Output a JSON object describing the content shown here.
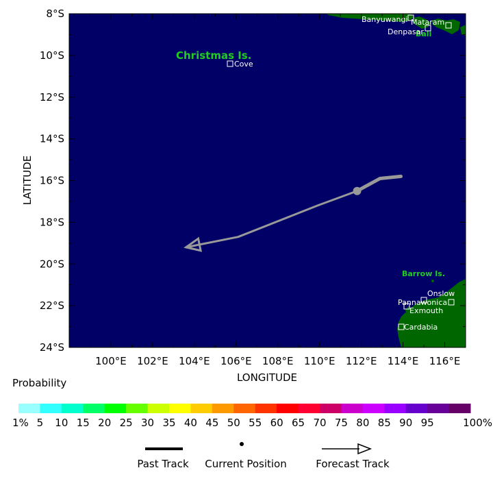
{
  "map": {
    "xlabel": "LONGITUDE",
    "ylabel": "LATITUDE",
    "lat_range": [
      -24,
      -8
    ],
    "lon_range": [
      98,
      117
    ],
    "lat_ticks": [
      "8°S",
      "10°S",
      "12°S",
      "14°S",
      "16°S",
      "18°S",
      "20°S",
      "22°S",
      "24°S"
    ],
    "lon_ticks": [
      "100°E",
      "102°E",
      "104°E",
      "106°E",
      "108°E",
      "110°E",
      "112°E",
      "114°E",
      "116°E"
    ],
    "ocean_color": "#000066",
    "land_color": "#006600",
    "labels": {
      "christmas": "Christmas Is.",
      "cove": "Cove",
      "banyuwangi": "Banyuwangi",
      "mataram": "Mataram",
      "denpasar": "Denpasar",
      "bali": "Bali",
      "barrow": "Barrow Is.",
      "onslow": "Onslow",
      "pannawonica": "Pannawonica",
      "exmouth": "Exmouth",
      "cardabia": "Cardabia"
    },
    "past_track": [
      {
        "lon": 113.9,
        "lat": -15.8
      },
      {
        "lon": 112.9,
        "lat": -15.9
      },
      {
        "lon": 111.8,
        "lat": -16.5
      }
    ],
    "current_position": {
      "lon": 111.8,
      "lat": -16.5
    },
    "forecast_track": [
      {
        "lon": 111.8,
        "lat": -16.5
      },
      {
        "lon": 109.9,
        "lat": -17.2
      },
      {
        "lon": 106.1,
        "lat": -18.7
      },
      {
        "lon": 103.6,
        "lat": -19.2
      }
    ],
    "track_color": "#999999"
  },
  "legend": {
    "title": "Probability",
    "labels": [
      "1%",
      "5",
      "10",
      "15",
      "20",
      "25",
      "30",
      "35",
      "40",
      "45",
      "50",
      "55",
      "60",
      "65",
      "70",
      "75",
      "80",
      "85",
      "90",
      "95",
      "100%"
    ],
    "colors": [
      "#99ffff",
      "#33ffff",
      "#00ffcc",
      "#00ff66",
      "#00ff00",
      "#66ff00",
      "#ccff00",
      "#ffff00",
      "#ffcc00",
      "#ff9900",
      "#ff6600",
      "#ff3300",
      "#ff0000",
      "#ff0033",
      "#cc0066",
      "#cc00cc",
      "#cc00ff",
      "#9900ff",
      "#6600cc",
      "#660099",
      "#660066"
    ],
    "past_track_label": "Past Track",
    "current_position_label": "Current Position",
    "forecast_track_label": "Forecast Track"
  }
}
